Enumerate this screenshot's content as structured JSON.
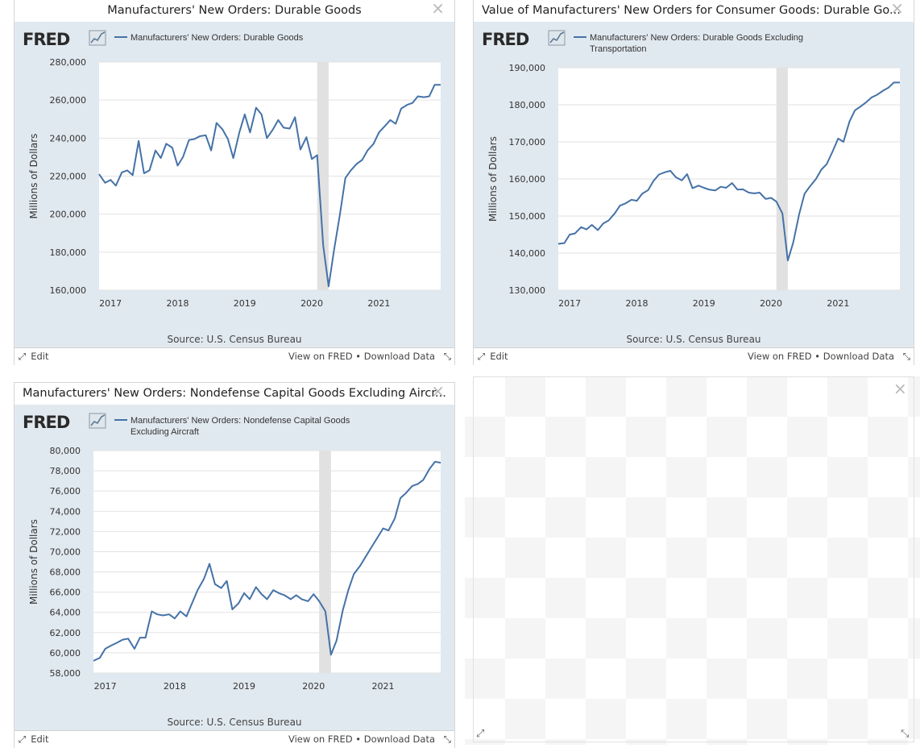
{
  "footer": {
    "edit_label": "Edit",
    "view_label": "View on FRED",
    "separator": "•",
    "download_label": "Download Data"
  },
  "panels": [
    {
      "title": "Manufacturers' New Orders: Durable Goods",
      "source": "Source: U.S. Census Bureau",
      "logo": "FRED",
      "legend": [
        "Manufacturers' New Orders: Durable Goods"
      ],
      "chart_data": {
        "type": "line",
        "title": "Manufacturers' New Orders: Durable Goods",
        "ylabel": "Millions of Dollars",
        "xlabel": "",
        "ylim": [
          160000,
          280000
        ],
        "yticks": [
          160000,
          180000,
          200000,
          220000,
          240000,
          260000,
          280000
        ],
        "ytick_labels": [
          "160,000",
          "180,000",
          "200,000",
          "220,000",
          "240,000",
          "260,000",
          "280,000"
        ],
        "xlim": [
          2016.83,
          2021.92
        ],
        "xticks": [
          2017,
          2018,
          2019,
          2020,
          2021
        ],
        "xtick_labels": [
          "2017",
          "2018",
          "2019",
          "2020",
          "2021"
        ],
        "recession": [
          2020.08,
          2020.25
        ],
        "line_color": "#4572a7",
        "series": [
          {
            "name": "Manufacturers' New Orders: Durable Goods",
            "x": [
              2016.83,
              2016.92,
              2017.0,
              2017.08,
              2017.17,
              2017.25,
              2017.33,
              2017.42,
              2017.5,
              2017.58,
              2017.67,
              2017.75,
              2017.83,
              2017.92,
              2018.0,
              2018.08,
              2018.17,
              2018.25,
              2018.33,
              2018.42,
              2018.5,
              2018.58,
              2018.67,
              2018.75,
              2018.83,
              2018.92,
              2019.0,
              2019.08,
              2019.17,
              2019.25,
              2019.33,
              2019.42,
              2019.5,
              2019.58,
              2019.67,
              2019.75,
              2019.83,
              2019.92,
              2020.0,
              2020.08,
              2020.17,
              2020.25,
              2020.33,
              2020.42,
              2020.5,
              2020.58,
              2020.67,
              2020.75,
              2020.83,
              2020.92,
              2021.0,
              2021.08,
              2021.17,
              2021.25,
              2021.33,
              2021.42,
              2021.5,
              2021.58,
              2021.67,
              2021.75,
              2021.83,
              2021.92
            ],
            "values": [
              221000,
              216500,
              218000,
              215000,
              222000,
              223000,
              220500,
              238500,
              221500,
              223000,
              233500,
              229500,
              237000,
              235000,
              225500,
              230000,
              239000,
              239500,
              241000,
              241500,
              233500,
              248000,
              244500,
              239500,
              229500,
              243000,
              252500,
              243000,
              256000,
              252500,
              240000,
              244500,
              249500,
              245500,
              245000,
              251000,
              234000,
              240500,
              229000,
              231000,
              183500,
              162000,
              181000,
              200000,
              219000,
              223000,
              226500,
              228500,
              233500,
              237000,
              243000,
              246000,
              249500,
              247500,
              255500,
              257500,
              258500,
              262000,
              261500,
              262000,
              268000,
              268000
            ]
          }
        ]
      }
    },
    {
      "title": "Value of Manufacturers' New Orders for Consumer Goods: Durable Go...",
      "source": "Source: U.S. Census Bureau",
      "logo": "FRED",
      "legend": [
        "Manufacturers' New Orders: Durable Goods Excluding",
        "Transportation"
      ],
      "chart_data": {
        "type": "line",
        "title": "Value of Manufacturers' New Orders for Consumer Goods: Durable Go...",
        "ylabel": "Millions of Dollars",
        "xlabel": "",
        "ylim": [
          130000,
          190000
        ],
        "yticks": [
          130000,
          140000,
          150000,
          160000,
          170000,
          180000,
          190000
        ],
        "ytick_labels": [
          "130,000",
          "140,000",
          "150,000",
          "160,000",
          "170,000",
          "180,000",
          "190,000"
        ],
        "xlim": [
          2016.83,
          2021.92
        ],
        "xticks": [
          2017,
          2018,
          2019,
          2020,
          2021
        ],
        "xtick_labels": [
          "2017",
          "2018",
          "2019",
          "2020",
          "2021"
        ],
        "recession": [
          2020.08,
          2020.25
        ],
        "line_color": "#4572a7",
        "series": [
          {
            "name": "Manufacturers' New Orders: Durable Goods Excluding Transportation",
            "x": [
              2016.83,
              2016.92,
              2017.0,
              2017.08,
              2017.17,
              2017.25,
              2017.33,
              2017.42,
              2017.5,
              2017.58,
              2017.67,
              2017.75,
              2017.83,
              2017.92,
              2018.0,
              2018.08,
              2018.17,
              2018.25,
              2018.33,
              2018.42,
              2018.5,
              2018.58,
              2018.67,
              2018.75,
              2018.83,
              2018.92,
              2019.0,
              2019.08,
              2019.17,
              2019.25,
              2019.33,
              2019.42,
              2019.5,
              2019.58,
              2019.67,
              2019.75,
              2019.83,
              2019.92,
              2020.0,
              2020.08,
              2020.17,
              2020.25,
              2020.33,
              2020.42,
              2020.5,
              2020.58,
              2020.67,
              2020.75,
              2020.83,
              2020.92,
              2021.0,
              2021.08,
              2021.17,
              2021.25,
              2021.33,
              2021.42,
              2021.5,
              2021.58,
              2021.67,
              2021.75,
              2021.83,
              2021.92
            ],
            "values": [
              142500,
              142700,
              145000,
              145300,
              147000,
              146400,
              147600,
              146200,
              148000,
              148800,
              150700,
              152800,
              153400,
              154400,
              154100,
              156000,
              157000,
              159500,
              161200,
              161800,
              162200,
              160500,
              159600,
              161300,
              157500,
              158200,
              157600,
              157100,
              156900,
              157900,
              157600,
              158900,
              157100,
              157200,
              156300,
              156100,
              156300,
              154600,
              154900,
              153900,
              150700,
              138000,
              142800,
              150500,
              156000,
              158000,
              160000,
              162500,
              164000,
              167500,
              170900,
              170000,
              175500,
              178500,
              179500,
              180700,
              182000,
              182700,
              183800,
              184600,
              186000,
              186000
            ]
          }
        ]
      }
    },
    {
      "title": "Manufacturers' New Orders: Nondefense Capital Goods Excluding Aircr...",
      "source": "Source: U.S. Census Bureau",
      "logo": "FRED",
      "legend": [
        "Manufacturers' New Orders: Nondefense Capital Goods",
        "Excluding Aircraft"
      ],
      "chart_data": {
        "type": "line",
        "title": "Manufacturers' New Orders: Nondefense Capital Goods Excluding Aircr...",
        "ylabel": "Millions of Dollars",
        "xlabel": "",
        "ylim": [
          58000,
          80000
        ],
        "yticks": [
          58000,
          60000,
          62000,
          64000,
          66000,
          68000,
          70000,
          72000,
          74000,
          76000,
          78000,
          80000
        ],
        "ytick_labels": [
          "58,000",
          "60,000",
          "62,000",
          "64,000",
          "66,000",
          "68,000",
          "70,000",
          "72,000",
          "74,000",
          "76,000",
          "78,000",
          "80,000"
        ],
        "xlim": [
          2016.83,
          2021.83
        ],
        "xticks": [
          2017,
          2018,
          2019,
          2020,
          2021
        ],
        "xtick_labels": [
          "2017",
          "2018",
          "2019",
          "2020",
          "2021"
        ],
        "recession": [
          2020.08,
          2020.25
        ],
        "line_color": "#4572a7",
        "series": [
          {
            "name": "Manufacturers' New Orders: Nondefense Capital Goods Excluding Aircraft",
            "x": [
              2016.83,
              2016.92,
              2017.0,
              2017.08,
              2017.17,
              2017.25,
              2017.33,
              2017.42,
              2017.5,
              2017.58,
              2017.67,
              2017.75,
              2017.83,
              2017.92,
              2018.0,
              2018.08,
              2018.17,
              2018.25,
              2018.33,
              2018.42,
              2018.5,
              2018.58,
              2018.67,
              2018.75,
              2018.83,
              2018.92,
              2019.0,
              2019.08,
              2019.17,
              2019.25,
              2019.33,
              2019.42,
              2019.5,
              2019.58,
              2019.67,
              2019.75,
              2019.83,
              2019.92,
              2020.0,
              2020.08,
              2020.17,
              2020.25,
              2020.33,
              2020.42,
              2020.5,
              2020.58,
              2020.67,
              2020.75,
              2020.83,
              2020.92,
              2021.0,
              2021.08,
              2021.17,
              2021.25,
              2021.33,
              2021.42,
              2021.5,
              2021.58,
              2021.67,
              2021.75,
              2021.83
            ],
            "values": [
              59200,
              59500,
              60400,
              60700,
              61000,
              61300,
              61400,
              60400,
              61500,
              61500,
              64100,
              63800,
              63700,
              63800,
              63400,
              64100,
              63600,
              64900,
              66200,
              67300,
              68800,
              66800,
              66400,
              67100,
              64300,
              64900,
              65900,
              65300,
              66500,
              65800,
              65300,
              66200,
              65900,
              65700,
              65300,
              65700,
              65300,
              65100,
              65800,
              65100,
              64100,
              59800,
              61200,
              64200,
              66200,
              67800,
              68600,
              69500,
              70400,
              71400,
              72300,
              72100,
              73300,
              75300,
              75800,
              76500,
              76700,
              77100,
              78200,
              78900,
              78800
            ]
          }
        ]
      }
    }
  ]
}
